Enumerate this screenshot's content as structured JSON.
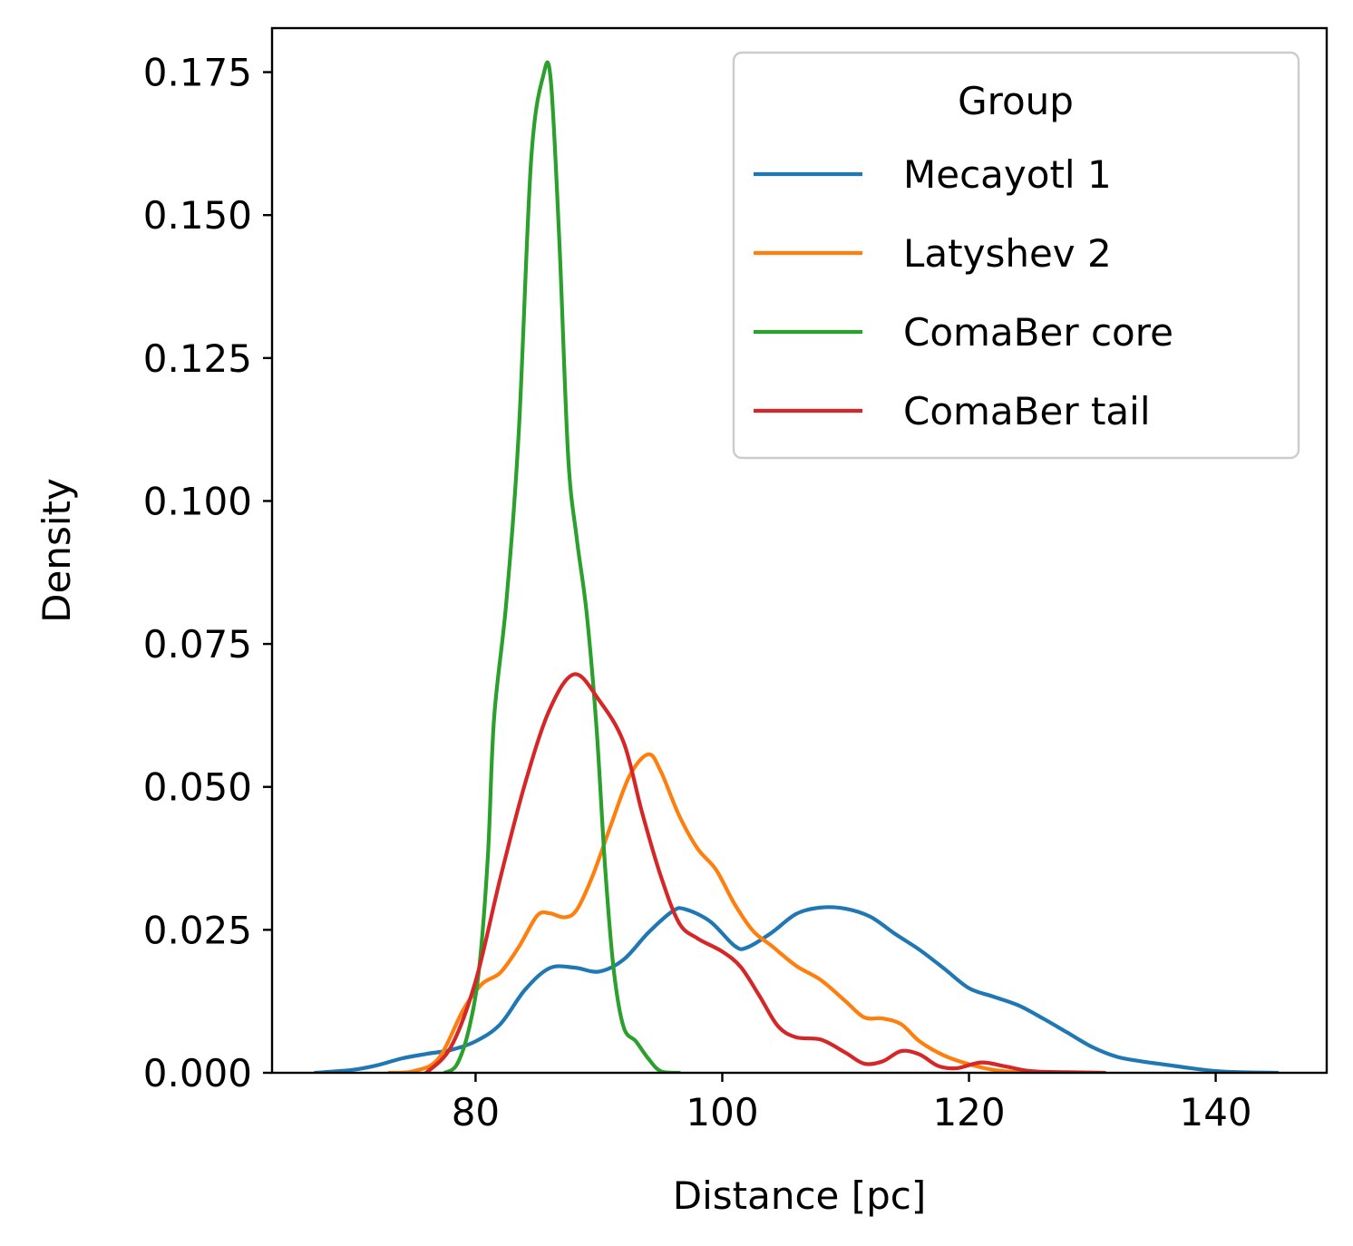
{
  "chart_data": {
    "type": "line",
    "title": "",
    "xlabel": "Distance [pc]",
    "ylabel": "Density",
    "xlim": [
      63.5,
      149
    ],
    "ylim": [
      0,
      0.1827
    ],
    "xticks": [
      80,
      100,
      120,
      140
    ],
    "xtick_labels": [
      "80",
      "100",
      "120",
      "140"
    ],
    "yticks": [
      0.0,
      0.025,
      0.05,
      0.075,
      0.1,
      0.125,
      0.15,
      0.175
    ],
    "ytick_labels": [
      "0.000",
      "0.025",
      "0.050",
      "0.075",
      "0.100",
      "0.125",
      "0.150",
      "0.175"
    ],
    "grid": false,
    "legend": {
      "title": "Group",
      "placement": "top-right"
    },
    "series": [
      {
        "name": "Mecayotl 1",
        "color": "#1f77b4",
        "points": [
          [
            67,
            0
          ],
          [
            70,
            0.0005
          ],
          [
            72,
            0.0013
          ],
          [
            74,
            0.0025
          ],
          [
            76,
            0.0033
          ],
          [
            78,
            0.004
          ],
          [
            80,
            0.0055
          ],
          [
            82,
            0.0085
          ],
          [
            84,
            0.0145
          ],
          [
            86,
            0.0183
          ],
          [
            88,
            0.0184
          ],
          [
            90,
            0.0177
          ],
          [
            92,
            0.0198
          ],
          [
            94,
            0.0245
          ],
          [
            96,
            0.0283
          ],
          [
            97,
            0.0286
          ],
          [
            99,
            0.0265
          ],
          [
            101,
            0.0222
          ],
          [
            102,
            0.0219
          ],
          [
            104,
            0.0245
          ],
          [
            106,
            0.0278
          ],
          [
            108,
            0.0289
          ],
          [
            110,
            0.0287
          ],
          [
            112,
            0.0273
          ],
          [
            114,
            0.0243
          ],
          [
            116,
            0.0215
          ],
          [
            118,
            0.0182
          ],
          [
            120,
            0.0148
          ],
          [
            122,
            0.0133
          ],
          [
            124,
            0.0118
          ],
          [
            126,
            0.0095
          ],
          [
            128,
            0.007
          ],
          [
            130,
            0.0045
          ],
          [
            132,
            0.0028
          ],
          [
            134,
            0.002
          ],
          [
            136,
            0.0014
          ],
          [
            138,
            0.0008
          ],
          [
            140,
            0.0003
          ],
          [
            142,
            0.0001
          ],
          [
            145,
            0
          ]
        ]
      },
      {
        "name": "Latyshev 2",
        "color": "#ff7f0e",
        "points": [
          [
            73,
            0
          ],
          [
            75,
            0.0003
          ],
          [
            77,
            0.0025
          ],
          [
            79,
            0.011
          ],
          [
            80.5,
            0.0155
          ],
          [
            82,
            0.0175
          ],
          [
            83.5,
            0.022
          ],
          [
            85,
            0.0275
          ],
          [
            86,
            0.0279
          ],
          [
            87.2,
            0.0272
          ],
          [
            88.2,
            0.0285
          ],
          [
            89.5,
            0.0345
          ],
          [
            91,
            0.0435
          ],
          [
            92.5,
            0.052
          ],
          [
            94,
            0.0557
          ],
          [
            95,
            0.0528
          ],
          [
            96.5,
            0.045
          ],
          [
            98,
            0.0392
          ],
          [
            99.5,
            0.0355
          ],
          [
            101,
            0.0295
          ],
          [
            102.5,
            0.0248
          ],
          [
            104,
            0.0222
          ],
          [
            106,
            0.0187
          ],
          [
            108,
            0.0162
          ],
          [
            110,
            0.0125
          ],
          [
            111.5,
            0.0097
          ],
          [
            113,
            0.0095
          ],
          [
            114.5,
            0.0085
          ],
          [
            116,
            0.0055
          ],
          [
            118,
            0.003
          ],
          [
            120,
            0.0015
          ],
          [
            122,
            0.0005
          ],
          [
            124,
            0.0001
          ],
          [
            126,
            0
          ]
        ]
      },
      {
        "name": "ComaBer core",
        "color": "#2ca02c",
        "points": [
          [
            77.5,
            0
          ],
          [
            78.5,
            0.0015
          ],
          [
            79.5,
            0.008
          ],
          [
            80.3,
            0.0185
          ],
          [
            81,
            0.038
          ],
          [
            81.5,
            0.062
          ],
          [
            82.5,
            0.0825
          ],
          [
            83.5,
            0.112
          ],
          [
            84.5,
            0.1595
          ],
          [
            85.5,
            0.1745
          ],
          [
            86.1,
            0.1735
          ],
          [
            86.8,
            0.145
          ],
          [
            87.5,
            0.108
          ],
          [
            88.2,
            0.0935
          ],
          [
            89,
            0.0805
          ],
          [
            89.8,
            0.0605
          ],
          [
            90.5,
            0.036
          ],
          [
            91.2,
            0.018
          ],
          [
            92,
            0.008
          ],
          [
            93,
            0.0055
          ],
          [
            94,
            0.0025
          ],
          [
            95,
            0.0003
          ],
          [
            96.5,
            0
          ]
        ]
      },
      {
        "name": "ComaBer tail",
        "color": "#d62728",
        "points": [
          [
            76,
            0
          ],
          [
            78,
            0.0045
          ],
          [
            80,
            0.016
          ],
          [
            82,
            0.034
          ],
          [
            84,
            0.0505
          ],
          [
            86,
            0.0635
          ],
          [
            88,
            0.0697
          ],
          [
            90,
            0.0652
          ],
          [
            92,
            0.0578
          ],
          [
            93.5,
            0.0455
          ],
          [
            95,
            0.0345
          ],
          [
            96.5,
            0.0262
          ],
          [
            98,
            0.0235
          ],
          [
            100,
            0.0212
          ],
          [
            101.5,
            0.0185
          ],
          [
            103,
            0.0135
          ],
          [
            104.5,
            0.0082
          ],
          [
            106,
            0.0062
          ],
          [
            108,
            0.0058
          ],
          [
            110,
            0.0035
          ],
          [
            111.5,
            0.0016
          ],
          [
            113,
            0.002
          ],
          [
            114.5,
            0.0038
          ],
          [
            116,
            0.0032
          ],
          [
            117.5,
            0.0012
          ],
          [
            119,
            0.0008
          ],
          [
            121,
            0.0018
          ],
          [
            123,
            0.0011
          ],
          [
            125,
            0.0003
          ],
          [
            128,
            0.0001
          ],
          [
            131,
            0
          ]
        ]
      }
    ]
  }
}
